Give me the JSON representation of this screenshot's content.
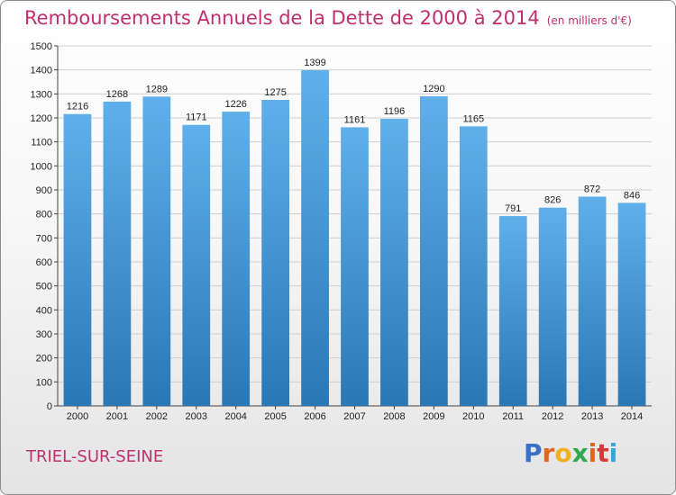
{
  "header": {
    "title": "Remboursements Annuels de la Dette de 2000 à 2014",
    "unit": "(en milliers d'€)"
  },
  "footer": {
    "commune": "TRIEL-SUR-SEINE",
    "brand": [
      "P",
      "r",
      "o",
      "x",
      "i",
      "t",
      "i"
    ]
  },
  "colors": {
    "title": "#c0306e",
    "bar_top": "#5fb0ea",
    "bar_bottom": "#2a77b5",
    "grid": "#cfcfcf",
    "brand": [
      "#3b6fc4",
      "#e0651f",
      "#f0b020",
      "#2fa84f",
      "#e0651f",
      "#d43a3a",
      "#3aa5d8"
    ]
  },
  "chart_data": {
    "type": "bar",
    "title": "Remboursements Annuels de la Dette de 2000 à 2014",
    "xlabel": "",
    "ylabel": "",
    "ylim": [
      0,
      1500
    ],
    "yticks": [
      0,
      100,
      200,
      300,
      400,
      500,
      600,
      700,
      800,
      900,
      1000,
      1100,
      1200,
      1300,
      1400,
      1500
    ],
    "grid": true,
    "categories": [
      "2000",
      "2001",
      "2002",
      "2003",
      "2004",
      "2005",
      "2006",
      "2007",
      "2008",
      "2009",
      "2010",
      "2011",
      "2012",
      "2013",
      "2014"
    ],
    "values": [
      1216,
      1268,
      1289,
      1171,
      1226,
      1275,
      1399,
      1161,
      1196,
      1290,
      1165,
      791,
      826,
      872,
      846
    ]
  }
}
